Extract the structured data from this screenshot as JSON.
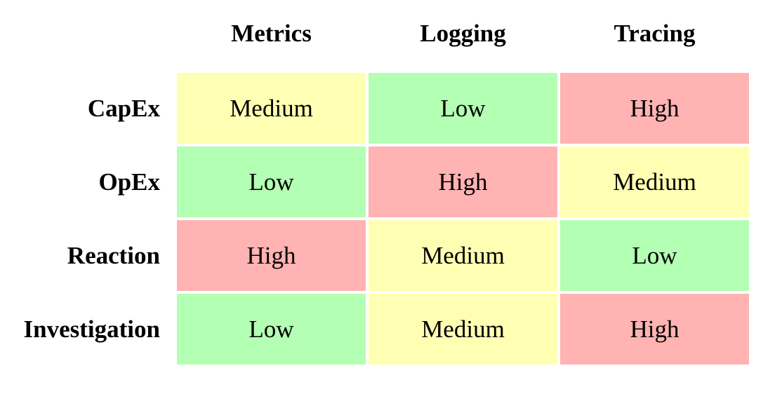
{
  "chart_data": {
    "type": "heatmap",
    "title": "",
    "columns": [
      "Metrics",
      "Logging",
      "Tracing"
    ],
    "rows": [
      "CapEx",
      "OpEx",
      "Reaction",
      "Investigation"
    ],
    "values": [
      [
        "Medium",
        "Low",
        "High"
      ],
      [
        "Low",
        "High",
        "Medium"
      ],
      [
        "High",
        "Medium",
        "Low"
      ],
      [
        "Low",
        "Medium",
        "High"
      ]
    ],
    "levels": [
      "Low",
      "Medium",
      "High"
    ],
    "colors": {
      "Low": "#b3ffb3",
      "Medium": "#ffffb3",
      "High": "#ffb3b3"
    },
    "legend": "none",
    "grid": false
  }
}
